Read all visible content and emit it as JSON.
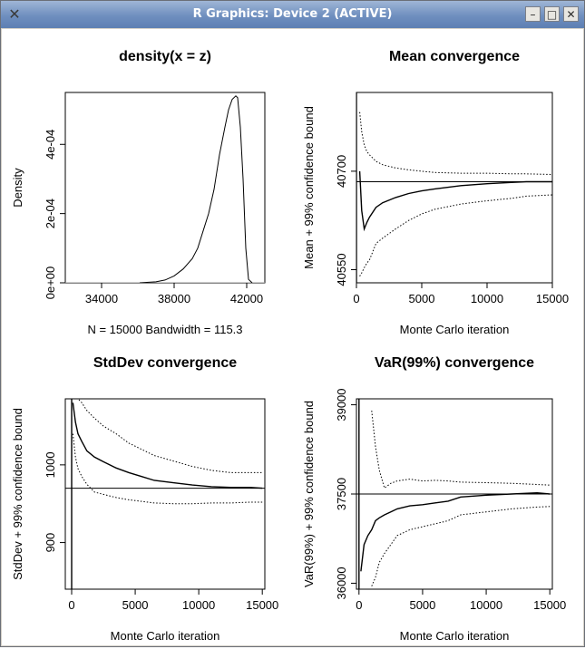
{
  "window": {
    "title": "R Graphics: Device 2 (ACTIVE)"
  },
  "icons": {
    "app": "x-icon",
    "minimize": "minimize-icon",
    "maximize": "maximize-icon",
    "close": "close-icon"
  },
  "chart_data": [
    {
      "type": "line",
      "title": "density(x = z)",
      "xlabel": "N = 15000   Bandwidth = 115.3",
      "ylabel": "Density",
      "xlim": [
        32000,
        43000
      ],
      "ylim": [
        0,
        0.00055
      ],
      "xticks": [
        "34000",
        "38000",
        "42000"
      ],
      "yticks": [
        "0e+00",
        "2e-04",
        "4e-04"
      ],
      "x": [
        36100,
        37000,
        37500,
        38000,
        38500,
        39000,
        39300,
        39600,
        39900,
        40200,
        40500,
        40800,
        41000,
        41200,
        41400,
        41500,
        41650,
        41800,
        41950,
        42100,
        42300
      ],
      "y": [
        0,
        3e-06,
        8e-06,
        2e-05,
        4e-05,
        7e-05,
        0.0001,
        0.00015,
        0.0002,
        0.00027,
        0.00037,
        0.00045,
        0.0005,
        0.00053,
        0.00054,
        0.000535,
        0.00045,
        0.0003,
        0.0001,
        1e-05,
        0
      ]
    },
    {
      "type": "line",
      "title": "Mean convergence",
      "xlabel": "Monte Carlo iteration",
      "ylabel": "Mean + 99% confidence bound",
      "xlim": [
        0,
        15000
      ],
      "ylim": [
        40530,
        40820
      ],
      "xticks": [
        "0",
        "5000",
        "10000",
        "15000"
      ],
      "yticks": [
        "40550",
        "40700"
      ],
      "reference_line": 40684,
      "iteration": [
        250,
        400,
        600,
        800,
        1000,
        1500,
        2000,
        3000,
        4000,
        5000,
        6000,
        8000,
        10000,
        12000,
        13000,
        15000
      ],
      "series": [
        {
          "values": [
            40700,
            40640,
            40612,
            40622,
            40630,
            40645,
            40652,
            40660,
            40666,
            40670,
            40673,
            40678,
            40681,
            40683,
            40684,
            40684
          ]
        },
        {
          "values": [
            40790,
            40760,
            40740,
            40730,
            40725,
            40715,
            40710,
            40705,
            40702,
            40700,
            40698,
            40697,
            40697,
            40696,
            40696,
            40695
          ]
        },
        {
          "values": [
            40540,
            40545,
            40553,
            40560,
            40565,
            40590,
            40598,
            40612,
            40625,
            40635,
            40642,
            40650,
            40655,
            40659,
            40662,
            40664
          ]
        }
      ]
    },
    {
      "type": "line",
      "title": "StdDev convergence",
      "xlabel": "Monte Carlo iteration",
      "ylabel": "StdDev + 99% confidence bound",
      "xlim": [
        -500,
        15200
      ],
      "ylim": [
        840,
        1085
      ],
      "xticks": [
        "0",
        "5000",
        "10000",
        "15000"
      ],
      "yticks": [
        "900",
        "1000"
      ],
      "reference_line": 970,
      "iteration": [
        100,
        300,
        500,
        800,
        1200,
        1800,
        2500,
        3500,
        4500,
        5500,
        6500,
        8000,
        9500,
        11000,
        12500,
        14000,
        15000
      ],
      "series": [
        {
          "values": [
            1080,
            1055,
            1040,
            1030,
            1018,
            1010,
            1004,
            996,
            990,
            985,
            980,
            977,
            974,
            972,
            971,
            971,
            970
          ]
        },
        {
          "values": [
            1085,
            1085,
            1085,
            1080,
            1070,
            1060,
            1050,
            1040,
            1028,
            1020,
            1012,
            1005,
            998,
            993,
            990,
            990,
            990
          ]
        },
        {
          "values": [
            1040,
            1010,
            995,
            985,
            975,
            965,
            962,
            958,
            955,
            953,
            951,
            950,
            950,
            951,
            951,
            952,
            952
          ]
        }
      ]
    },
    {
      "type": "line",
      "title": "VaR(99%) convergence",
      "xlabel": "Monte Carlo iteration",
      "ylabel": "VaR(99%) + 99% confidence bound",
      "xlim": [
        -200,
        15200
      ],
      "ylim": [
        35900,
        39100
      ],
      "xticks": [
        "0",
        "5000",
        "10000",
        "15000"
      ],
      "yticks": [
        "36000",
        "37500",
        "39000"
      ],
      "reference_line": 37500,
      "iteration": [
        150,
        400,
        700,
        1000,
        1300,
        1600,
        2000,
        2500,
        3000,
        4000,
        5000,
        6000,
        7000,
        8000,
        10000,
        12000,
        14000,
        15000
      ],
      "series": [
        {
          "values": [
            36200,
            36650,
            36800,
            36900,
            37050,
            37100,
            37150,
            37200,
            37250,
            37300,
            37320,
            37350,
            37380,
            37450,
            37480,
            37500,
            37520,
            37500
          ]
        },
        {
          "values": [
            null,
            null,
            null,
            38900,
            38300,
            37900,
            37600,
            37680,
            37720,
            37750,
            37720,
            37730,
            37720,
            37700,
            37690,
            37680,
            37660,
            37650
          ]
        },
        {
          "values": [
            null,
            null,
            null,
            35950,
            36100,
            36350,
            36500,
            36650,
            36800,
            36900,
            36950,
            37000,
            37050,
            37150,
            37200,
            37250,
            37280,
            37290
          ]
        }
      ]
    }
  ]
}
